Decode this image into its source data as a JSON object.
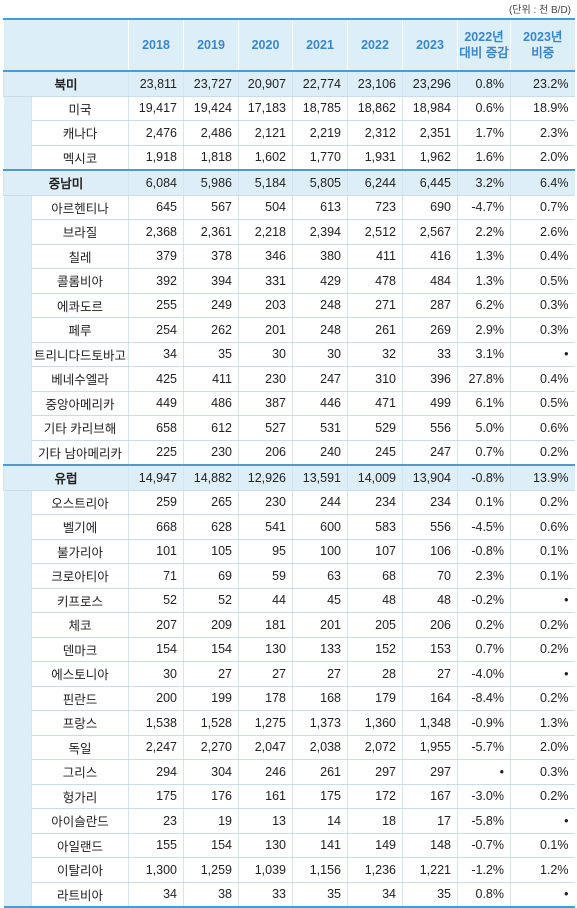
{
  "unit": "(단위 : 천 B/D)",
  "header": [
    "2018",
    "2019",
    "2020",
    "2021",
    "2022",
    "2023",
    [
      "2022년",
      "대비 증감"
    ],
    [
      "2023년",
      "비중"
    ]
  ],
  "groups": [
    {
      "region": {
        "name": "북미",
        "values": [
          "23,811",
          "23,727",
          "20,907",
          "22,774",
          "23,106",
          "23,296",
          "0.8%",
          "23.2%"
        ]
      },
      "countries": [
        {
          "name": "미국",
          "values": [
            "19,417",
            "19,424",
            "17,183",
            "18,785",
            "18,862",
            "18,984",
            "0.6%",
            "18.9%"
          ]
        },
        {
          "name": "캐나다",
          "values": [
            "2,476",
            "2,486",
            "2,121",
            "2,219",
            "2,312",
            "2,351",
            "1.7%",
            "2.3%"
          ]
        },
        {
          "name": "멕시코",
          "values": [
            "1,918",
            "1,818",
            "1,602",
            "1,770",
            "1,931",
            "1,962",
            "1.6%",
            "2.0%"
          ]
        }
      ]
    },
    {
      "region": {
        "name": "중남미",
        "values": [
          "6,084",
          "5,986",
          "5,184",
          "5,805",
          "6,244",
          "6,445",
          "3.2%",
          "6.4%"
        ]
      },
      "countries": [
        {
          "name": "아르헨티나",
          "values": [
            "645",
            "567",
            "504",
            "613",
            "723",
            "690",
            "-4.7%",
            "0.7%"
          ]
        },
        {
          "name": "브라질",
          "values": [
            "2,368",
            "2,361",
            "2,218",
            "2,394",
            "2,512",
            "2,567",
            "2.2%",
            "2.6%"
          ]
        },
        {
          "name": "칠레",
          "values": [
            "379",
            "378",
            "346",
            "380",
            "411",
            "416",
            "1.3%",
            "0.4%"
          ]
        },
        {
          "name": "콜롬비아",
          "values": [
            "392",
            "394",
            "331",
            "429",
            "478",
            "484",
            "1.3%",
            "0.5%"
          ]
        },
        {
          "name": "에콰도르",
          "values": [
            "255",
            "249",
            "203",
            "248",
            "271",
            "287",
            "6.2%",
            "0.3%"
          ]
        },
        {
          "name": "페루",
          "values": [
            "254",
            "262",
            "201",
            "248",
            "261",
            "269",
            "2.9%",
            "0.3%"
          ]
        },
        {
          "name": "트리니다드토바고",
          "values": [
            "34",
            "35",
            "30",
            "30",
            "32",
            "33",
            "3.1%",
            "•"
          ]
        },
        {
          "name": "베네수엘라",
          "values": [
            "425",
            "411",
            "230",
            "247",
            "310",
            "396",
            "27.8%",
            "0.4%"
          ]
        },
        {
          "name": "중앙아메리카",
          "values": [
            "449",
            "486",
            "387",
            "446",
            "471",
            "499",
            "6.1%",
            "0.5%"
          ]
        },
        {
          "name": "기타 카리브해",
          "values": [
            "658",
            "612",
            "527",
            "531",
            "529",
            "556",
            "5.0%",
            "0.6%"
          ]
        },
        {
          "name": "기타 남아메리카",
          "values": [
            "225",
            "230",
            "206",
            "240",
            "245",
            "247",
            "0.7%",
            "0.2%"
          ]
        }
      ]
    },
    {
      "region": {
        "name": "유럽",
        "values": [
          "14,947",
          "14,882",
          "12,926",
          "13,591",
          "14,009",
          "13,904",
          "-0.8%",
          "13.9%"
        ]
      },
      "countries": [
        {
          "name": "오스트리아",
          "values": [
            "259",
            "265",
            "230",
            "244",
            "234",
            "234",
            "0.1%",
            "0.2%"
          ]
        },
        {
          "name": "벨기에",
          "values": [
            "668",
            "628",
            "541",
            "600",
            "583",
            "556",
            "-4.5%",
            "0.6%"
          ]
        },
        {
          "name": "불가리아",
          "values": [
            "101",
            "105",
            "95",
            "100",
            "107",
            "106",
            "-0.8%",
            "0.1%"
          ]
        },
        {
          "name": "크로아티아",
          "values": [
            "71",
            "69",
            "59",
            "63",
            "68",
            "70",
            "2.3%",
            "0.1%"
          ]
        },
        {
          "name": "키프로스",
          "values": [
            "52",
            "52",
            "44",
            "45",
            "48",
            "48",
            "-0.2%",
            "•"
          ]
        },
        {
          "name": "체코",
          "values": [
            "207",
            "209",
            "181",
            "201",
            "205",
            "206",
            "0.2%",
            "0.2%"
          ]
        },
        {
          "name": "덴마크",
          "values": [
            "154",
            "154",
            "130",
            "133",
            "152",
            "153",
            "0.7%",
            "0.2%"
          ]
        },
        {
          "name": "에스토니아",
          "values": [
            "30",
            "27",
            "27",
            "27",
            "28",
            "27",
            "-4.0%",
            "•"
          ]
        },
        {
          "name": "핀란드",
          "values": [
            "200",
            "199",
            "178",
            "168",
            "179",
            "164",
            "-8.4%",
            "0.2%"
          ]
        },
        {
          "name": "프랑스",
          "values": [
            "1,538",
            "1,528",
            "1,275",
            "1,373",
            "1,360",
            "1,348",
            "-0.9%",
            "1.3%"
          ]
        },
        {
          "name": "독일",
          "values": [
            "2,247",
            "2,270",
            "2,047",
            "2,038",
            "2,072",
            "1,955",
            "-5.7%",
            "2.0%"
          ]
        },
        {
          "name": "그리스",
          "values": [
            "294",
            "304",
            "246",
            "261",
            "297",
            "297",
            "•",
            "0.3%"
          ]
        },
        {
          "name": "헝가리",
          "values": [
            "175",
            "176",
            "161",
            "175",
            "172",
            "167",
            "-3.0%",
            "0.2%"
          ]
        },
        {
          "name": "아이슬란드",
          "values": [
            "23",
            "19",
            "13",
            "14",
            "18",
            "17",
            "-5.8%",
            "•"
          ]
        },
        {
          "name": "아일랜드",
          "values": [
            "155",
            "154",
            "130",
            "141",
            "149",
            "148",
            "-0.7%",
            "0.1%"
          ]
        },
        {
          "name": "이탈리아",
          "values": [
            "1,300",
            "1,259",
            "1,039",
            "1,156",
            "1,236",
            "1,221",
            "-1.2%",
            "1.2%"
          ]
        },
        {
          "name": "라트비아",
          "values": [
            "34",
            "38",
            "33",
            "35",
            "34",
            "35",
            "0.8%",
            "•"
          ]
        }
      ]
    }
  ]
}
